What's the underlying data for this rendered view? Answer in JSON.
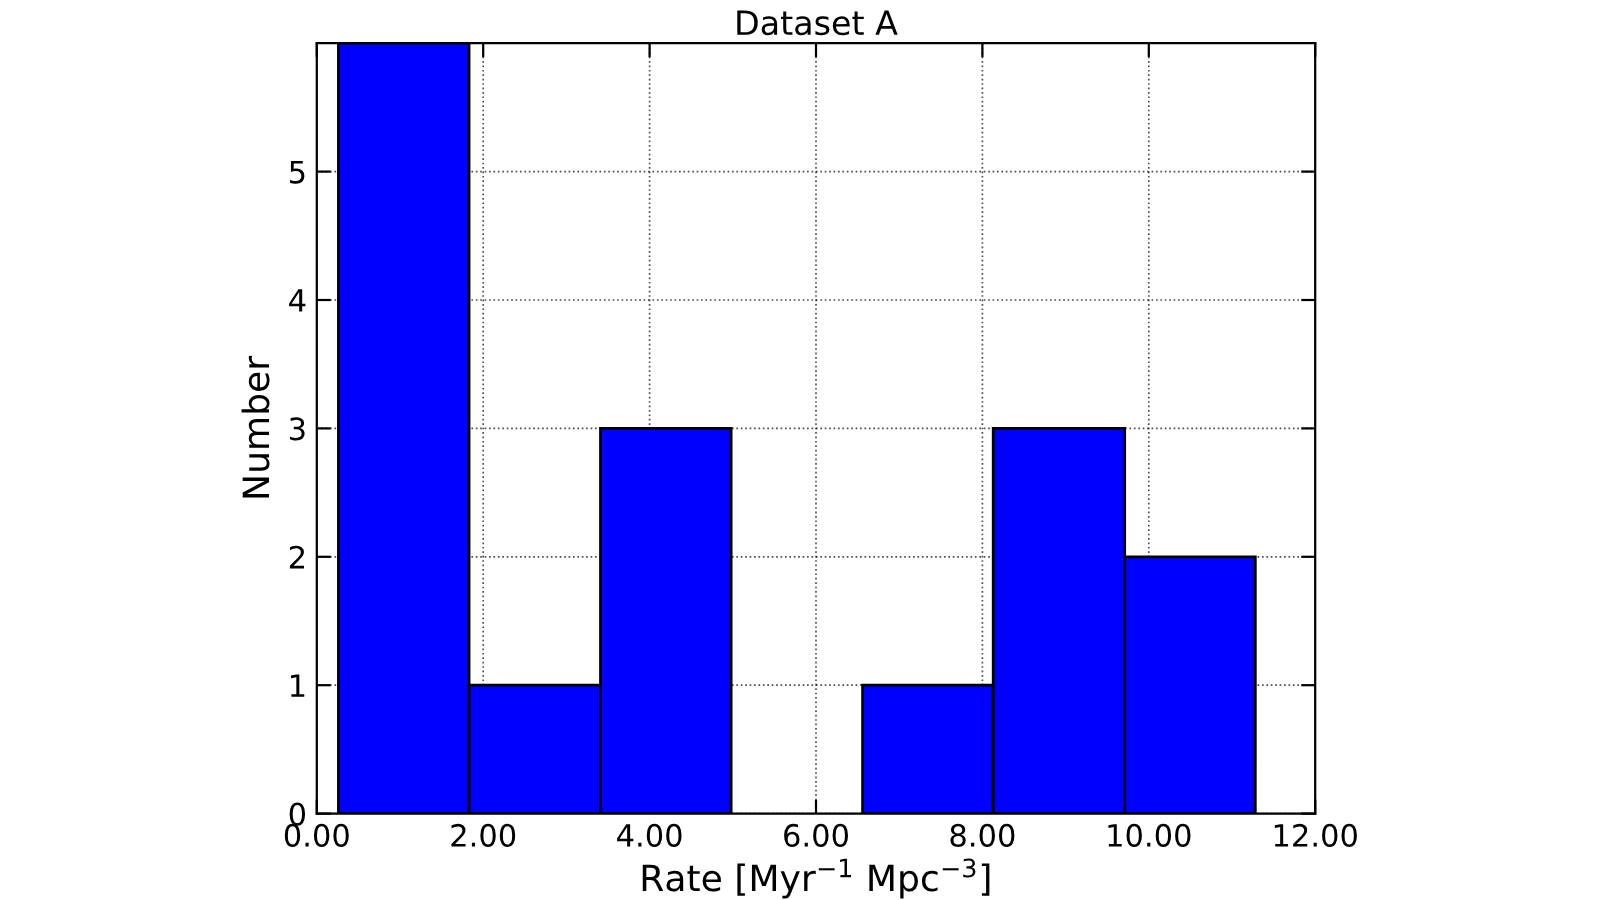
{
  "chart_data": {
    "type": "histogram",
    "title": "Dataset A",
    "xlabel": "Rate [Myr$^{−1}$ Mpc$^{−3}$]",
    "ylabel": "Number",
    "bins": [
      0.26,
      1.83,
      3.41,
      4.98,
      6.56,
      8.13,
      9.71,
      11.28
    ],
    "values": [
      6,
      1,
      3,
      0,
      1,
      3,
      2
    ],
    "color": "#0000ff",
    "xlim": [
      0,
      12
    ],
    "xticks": [
      {
        "value": 0,
        "label": "0.00"
      },
      {
        "value": 2,
        "label": "2.00"
      },
      {
        "value": 4,
        "label": "4.00"
      },
      {
        "value": 6,
        "label": "6.00"
      },
      {
        "value": 8,
        "label": "8.00"
      },
      {
        "value": 10,
        "label": "10.00"
      },
      {
        "value": 12,
        "label": "12.00"
      }
    ],
    "ylim": [
      0,
      6
    ],
    "yticks": [
      0,
      1,
      2,
      3,
      4,
      5
    ],
    "grid": true,
    "line_style": "dotted"
  }
}
